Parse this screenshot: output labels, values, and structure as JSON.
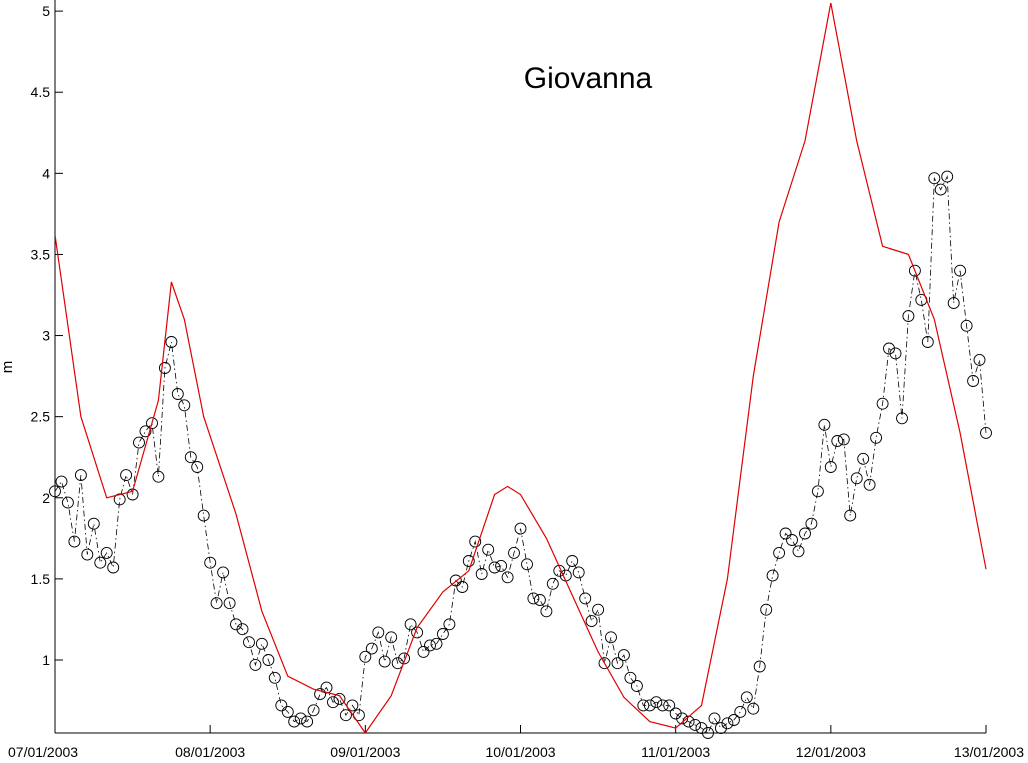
{
  "chart_data": {
    "type": "line",
    "title": "Giovanna",
    "ylabel": "m",
    "xlabel": "",
    "xlim": [
      "2003-01-07",
      "2003-01-13"
    ],
    "ylim": [
      0.55,
      5.05
    ],
    "x_tick_labels": [
      "07/01/2003",
      "08/01/2003",
      "09/01/2003",
      "10/01/2003",
      "11/01/2003",
      "12/01/2003",
      "13/01/2003"
    ],
    "y_ticks": [
      1,
      1.5,
      2,
      2.5,
      3,
      3.5,
      4,
      4.5,
      5
    ],
    "y_tick_labels": [
      "1",
      "1.5",
      "2",
      "2.5",
      "3",
      "3.5",
      "4",
      "4.5",
      "5"
    ],
    "grid": false,
    "series": [
      {
        "style": "circle-dashdot",
        "color": "#000000",
        "x": [
          "2003-01-07 00:00",
          "2003-01-07 01:00",
          "2003-01-07 02:00",
          "2003-01-07 03:00",
          "2003-01-07 04:00",
          "2003-01-07 05:00",
          "2003-01-07 06:00",
          "2003-01-07 07:00",
          "2003-01-07 08:00",
          "2003-01-07 09:00",
          "2003-01-07 10:00",
          "2003-01-07 11:00",
          "2003-01-07 12:00",
          "2003-01-07 13:00",
          "2003-01-07 14:00",
          "2003-01-07 15:00",
          "2003-01-07 16:00",
          "2003-01-07 17:00",
          "2003-01-07 18:00",
          "2003-01-07 19:00",
          "2003-01-07 20:00",
          "2003-01-07 21:00",
          "2003-01-07 22:00",
          "2003-01-07 23:00",
          "2003-01-08 00:00",
          "2003-01-08 01:00",
          "2003-01-08 02:00",
          "2003-01-08 03:00",
          "2003-01-08 04:00",
          "2003-01-08 05:00",
          "2003-01-08 06:00",
          "2003-01-08 07:00",
          "2003-01-08 08:00",
          "2003-01-08 09:00",
          "2003-01-08 10:00",
          "2003-01-08 11:00",
          "2003-01-08 12:00",
          "2003-01-08 13:00",
          "2003-01-08 14:00",
          "2003-01-08 15:00",
          "2003-01-08 16:00",
          "2003-01-08 17:00",
          "2003-01-08 18:00",
          "2003-01-08 19:00",
          "2003-01-08 20:00",
          "2003-01-08 21:00",
          "2003-01-08 22:00",
          "2003-01-08 23:00",
          "2003-01-09 00:00",
          "2003-01-09 01:00",
          "2003-01-09 02:00",
          "2003-01-09 03:00",
          "2003-01-09 04:00",
          "2003-01-09 05:00",
          "2003-01-09 06:00",
          "2003-01-09 07:00",
          "2003-01-09 08:00",
          "2003-01-09 09:00",
          "2003-01-09 10:00",
          "2003-01-09 11:00",
          "2003-01-09 12:00",
          "2003-01-09 13:00",
          "2003-01-09 14:00",
          "2003-01-09 15:00",
          "2003-01-09 16:00",
          "2003-01-09 17:00",
          "2003-01-09 18:00",
          "2003-01-09 19:00",
          "2003-01-09 20:00",
          "2003-01-09 21:00",
          "2003-01-09 22:00",
          "2003-01-09 23:00",
          "2003-01-10 00:00",
          "2003-01-10 01:00",
          "2003-01-10 02:00",
          "2003-01-10 03:00",
          "2003-01-10 04:00",
          "2003-01-10 05:00",
          "2003-01-10 06:00",
          "2003-01-10 07:00",
          "2003-01-10 08:00",
          "2003-01-10 09:00",
          "2003-01-10 10:00",
          "2003-01-10 11:00",
          "2003-01-10 12:00",
          "2003-01-10 13:00",
          "2003-01-10 14:00",
          "2003-01-10 15:00",
          "2003-01-10 16:00",
          "2003-01-10 17:00",
          "2003-01-10 18:00",
          "2003-01-10 19:00",
          "2003-01-10 20:00",
          "2003-01-10 21:00",
          "2003-01-10 22:00",
          "2003-01-10 23:00",
          "2003-01-11 00:00",
          "2003-01-11 01:00",
          "2003-01-11 02:00",
          "2003-01-11 03:00",
          "2003-01-11 04:00",
          "2003-01-11 05:00",
          "2003-01-11 06:00",
          "2003-01-11 07:00",
          "2003-01-11 08:00",
          "2003-01-11 09:00",
          "2003-01-11 10:00",
          "2003-01-11 11:00",
          "2003-01-11 12:00",
          "2003-01-11 13:00",
          "2003-01-11 14:00",
          "2003-01-11 15:00",
          "2003-01-11 16:00",
          "2003-01-11 17:00",
          "2003-01-11 18:00",
          "2003-01-11 19:00",
          "2003-01-11 20:00",
          "2003-01-11 21:00",
          "2003-01-11 22:00",
          "2003-01-11 23:00",
          "2003-01-12 00:00",
          "2003-01-12 01:00",
          "2003-01-12 02:00",
          "2003-01-12 03:00",
          "2003-01-12 04:00",
          "2003-01-12 05:00",
          "2003-01-12 06:00",
          "2003-01-12 07:00",
          "2003-01-12 08:00",
          "2003-01-12 09:00",
          "2003-01-12 10:00",
          "2003-01-12 11:00",
          "2003-01-12 12:00",
          "2003-01-12 13:00",
          "2003-01-12 14:00",
          "2003-01-12 15:00",
          "2003-01-12 16:00",
          "2003-01-12 17:00",
          "2003-01-12 18:00",
          "2003-01-12 19:00",
          "2003-01-12 20:00",
          "2003-01-12 21:00",
          "2003-01-12 22:00",
          "2003-01-12 23:00",
          "2003-01-13 00:00"
        ],
        "y": [
          2.04,
          2.1,
          1.97,
          1.73,
          2.14,
          1.65,
          1.84,
          1.6,
          1.66,
          1.57,
          1.99,
          2.14,
          2.02,
          2.34,
          2.41,
          2.46,
          2.13,
          2.8,
          2.96,
          2.64,
          2.57,
          2.25,
          2.19,
          1.89,
          1.6,
          1.35,
          1.54,
          1.35,
          1.22,
          1.19,
          1.11,
          0.97,
          1.1,
          1.0,
          0.89,
          0.72,
          0.68,
          0.62,
          0.64,
          0.62,
          0.69,
          0.79,
          0.83,
          0.74,
          0.76,
          0.66,
          0.72,
          0.66,
          1.02,
          1.07,
          1.17,
          0.99,
          1.14,
          0.98,
          1.01,
          1.22,
          1.17,
          1.05,
          1.09,
          1.1,
          1.16,
          1.22,
          1.49,
          1.45,
          1.61,
          1.73,
          1.53,
          1.68,
          1.57,
          1.58,
          1.51,
          1.66,
          1.81,
          1.59,
          1.38,
          1.37,
          1.3,
          1.47,
          1.55,
          1.52,
          1.61,
          1.54,
          1.38,
          1.24,
          1.31,
          0.98,
          1.14,
          0.98,
          1.03,
          0.89,
          0.84,
          0.72,
          0.72,
          0.74,
          0.72,
          0.72,
          0.67,
          0.64,
          0.62,
          0.6,
          0.58,
          0.55,
          0.64,
          0.58,
          0.61,
          0.63,
          0.68,
          0.77,
          0.7,
          0.96,
          1.31,
          1.52,
          1.66,
          1.78,
          1.74,
          1.67,
          1.78,
          1.84,
          2.04,
          2.45,
          2.19,
          2.35,
          2.36,
          1.89,
          2.12,
          2.24,
          2.08,
          2.37,
          2.58,
          2.92,
          2.89,
          2.49,
          3.12,
          3.4,
          3.22,
          2.96,
          3.97,
          3.9,
          3.98,
          3.2,
          3.4,
          3.06,
          2.72,
          2.85,
          2.4
        ]
      },
      {
        "style": "line",
        "color": "#e00000",
        "x": [
          "2003-01-07 00:00",
          "2003-01-07 04:00",
          "2003-01-07 08:00",
          "2003-01-07 12:00",
          "2003-01-07 16:00",
          "2003-01-07 18:00",
          "2003-01-07 20:00",
          "2003-01-07 23:00",
          "2003-01-08 04:00",
          "2003-01-08 08:00",
          "2003-01-08 12:00",
          "2003-01-08 16:00",
          "2003-01-08 20:00",
          "2003-01-09 00:00",
          "2003-01-09 04:00",
          "2003-01-09 08:00",
          "2003-01-09 12:00",
          "2003-01-09 16:00",
          "2003-01-09 20:00",
          "2003-01-09 22:00",
          "2003-01-10 00:00",
          "2003-01-10 04:00",
          "2003-01-10 08:00",
          "2003-01-10 12:00",
          "2003-01-10 16:00",
          "2003-01-10 20:00",
          "2003-01-11 00:00",
          "2003-01-11 04:00",
          "2003-01-11 08:00",
          "2003-01-11 12:00",
          "2003-01-11 16:00",
          "2003-01-11 20:00",
          "2003-01-12 00:00",
          "2003-01-12 04:00",
          "2003-01-12 08:00",
          "2003-01-12 12:00",
          "2003-01-12 16:00",
          "2003-01-12 20:00",
          "2003-01-13 00:00"
        ],
        "y": [
          3.62,
          2.5,
          2.0,
          2.04,
          2.6,
          3.33,
          3.1,
          2.5,
          1.9,
          1.3,
          0.9,
          0.82,
          0.78,
          0.55,
          0.78,
          1.2,
          1.42,
          1.55,
          2.02,
          2.07,
          2.02,
          1.75,
          1.4,
          1.05,
          0.77,
          0.62,
          0.58,
          0.72,
          1.5,
          2.75,
          3.7,
          4.2,
          5.05,
          4.2,
          3.55,
          3.5,
          3.1,
          2.4,
          1.56
        ]
      }
    ]
  }
}
